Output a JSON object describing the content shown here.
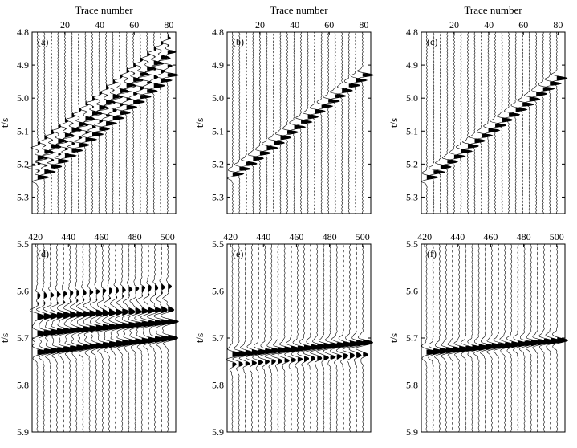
{
  "chart_data": [
    {
      "id": "a",
      "type": "seismic_wiggle",
      "panel_label": "(a)",
      "xlabel": "Trace number",
      "ylabel": "t/s",
      "x_ticks": [
        20,
        40,
        60,
        80
      ],
      "x_range": [
        1,
        84
      ],
      "y_ticks": [
        4.8,
        4.9,
        5.0,
        5.1,
        5.2,
        5.3
      ],
      "y_range": [
        4.8,
        5.35
      ],
      "trace_spacing": 4,
      "events": [
        {
          "t_first": 5.24,
          "t_last": 4.93,
          "amp": 1.0,
          "dir": 1
        },
        {
          "t_first": 5.21,
          "t_last": 4.89,
          "amp": 0.9,
          "dir": -1
        },
        {
          "t_first": 5.18,
          "t_last": 4.86,
          "amp": 0.75,
          "dir": 1
        },
        {
          "t_first": 5.15,
          "t_last": 4.83,
          "amp": 0.55,
          "dir": -1
        }
      ]
    },
    {
      "id": "b",
      "type": "seismic_wiggle",
      "panel_label": "(b)",
      "xlabel": "Trace number",
      "ylabel": "t/s",
      "x_ticks": [
        20,
        40,
        60,
        80
      ],
      "x_range": [
        1,
        84
      ],
      "y_ticks": [
        4.8,
        4.9,
        5.0,
        5.1,
        5.2,
        5.3
      ],
      "y_range": [
        4.8,
        5.35
      ],
      "trace_spacing": 4,
      "events": [
        {
          "t_first": 5.23,
          "t_last": 4.93,
          "amp": 1.0,
          "dir": 1
        }
      ]
    },
    {
      "id": "c",
      "type": "seismic_wiggle",
      "panel_label": "(c)",
      "xlabel": "Trace number",
      "ylabel": "t/s",
      "x_ticks": [
        20,
        40,
        60,
        80
      ],
      "x_range": [
        1,
        84
      ],
      "y_ticks": [
        4.8,
        4.9,
        5.0,
        5.1,
        5.2,
        5.3
      ],
      "y_range": [
        4.8,
        5.35
      ],
      "trace_spacing": 4,
      "events": [
        {
          "t_first": 5.24,
          "t_last": 4.94,
          "amp": 1.0,
          "dir": 1
        }
      ]
    },
    {
      "id": "d",
      "type": "seismic_wiggle",
      "panel_label": "(d)",
      "xlabel": "",
      "ylabel": "t/s",
      "x_ticks": [
        420,
        440,
        460,
        480,
        500
      ],
      "x_range": [
        418,
        505
      ],
      "y_ticks": [
        5.5,
        5.6,
        5.7,
        5.8,
        5.9
      ],
      "y_range": [
        5.5,
        5.9
      ],
      "trace_spacing": 4,
      "events": [
        {
          "t_first": 5.73,
          "t_last": 5.7,
          "amp": 1.0,
          "dir": 1
        },
        {
          "t_first": 5.69,
          "t_last": 5.665,
          "amp": 1.0,
          "dir": 1
        },
        {
          "t_first": 5.655,
          "t_last": 5.64,
          "amp": 0.6,
          "dir": 1
        },
        {
          "t_first": 5.64,
          "t_last": 5.615,
          "amp": 0.45,
          "dir": -1
        },
        {
          "t_first": 5.61,
          "t_last": 5.59,
          "amp": 0.3,
          "dir": 1
        }
      ]
    },
    {
      "id": "e",
      "type": "seismic_wiggle",
      "panel_label": "(e)",
      "xlabel": "",
      "ylabel": "t/s",
      "x_ticks": [
        420,
        440,
        460,
        480,
        500
      ],
      "x_range": [
        418,
        505
      ],
      "y_ticks": [
        5.5,
        5.6,
        5.7,
        5.8,
        5.9
      ],
      "y_range": [
        5.5,
        5.9
      ],
      "trace_spacing": 4,
      "events": [
        {
          "t_first": 5.735,
          "t_last": 5.71,
          "amp": 1.0,
          "dir": 1
        },
        {
          "t_first": 5.755,
          "t_last": 5.735,
          "amp": 0.5,
          "dir": 1
        }
      ]
    },
    {
      "id": "f",
      "type": "seismic_wiggle",
      "panel_label": "(f)",
      "xlabel": "",
      "ylabel": "t/s",
      "x_ticks": [
        420,
        440,
        460,
        480,
        500
      ],
      "x_range": [
        418,
        505
      ],
      "y_ticks": [
        5.5,
        5.6,
        5.7,
        5.8,
        5.9
      ],
      "y_range": [
        5.5,
        5.9
      ],
      "trace_spacing": 4,
      "events": [
        {
          "t_first": 5.73,
          "t_last": 5.705,
          "amp": 1.0,
          "dir": 1
        }
      ]
    }
  ]
}
